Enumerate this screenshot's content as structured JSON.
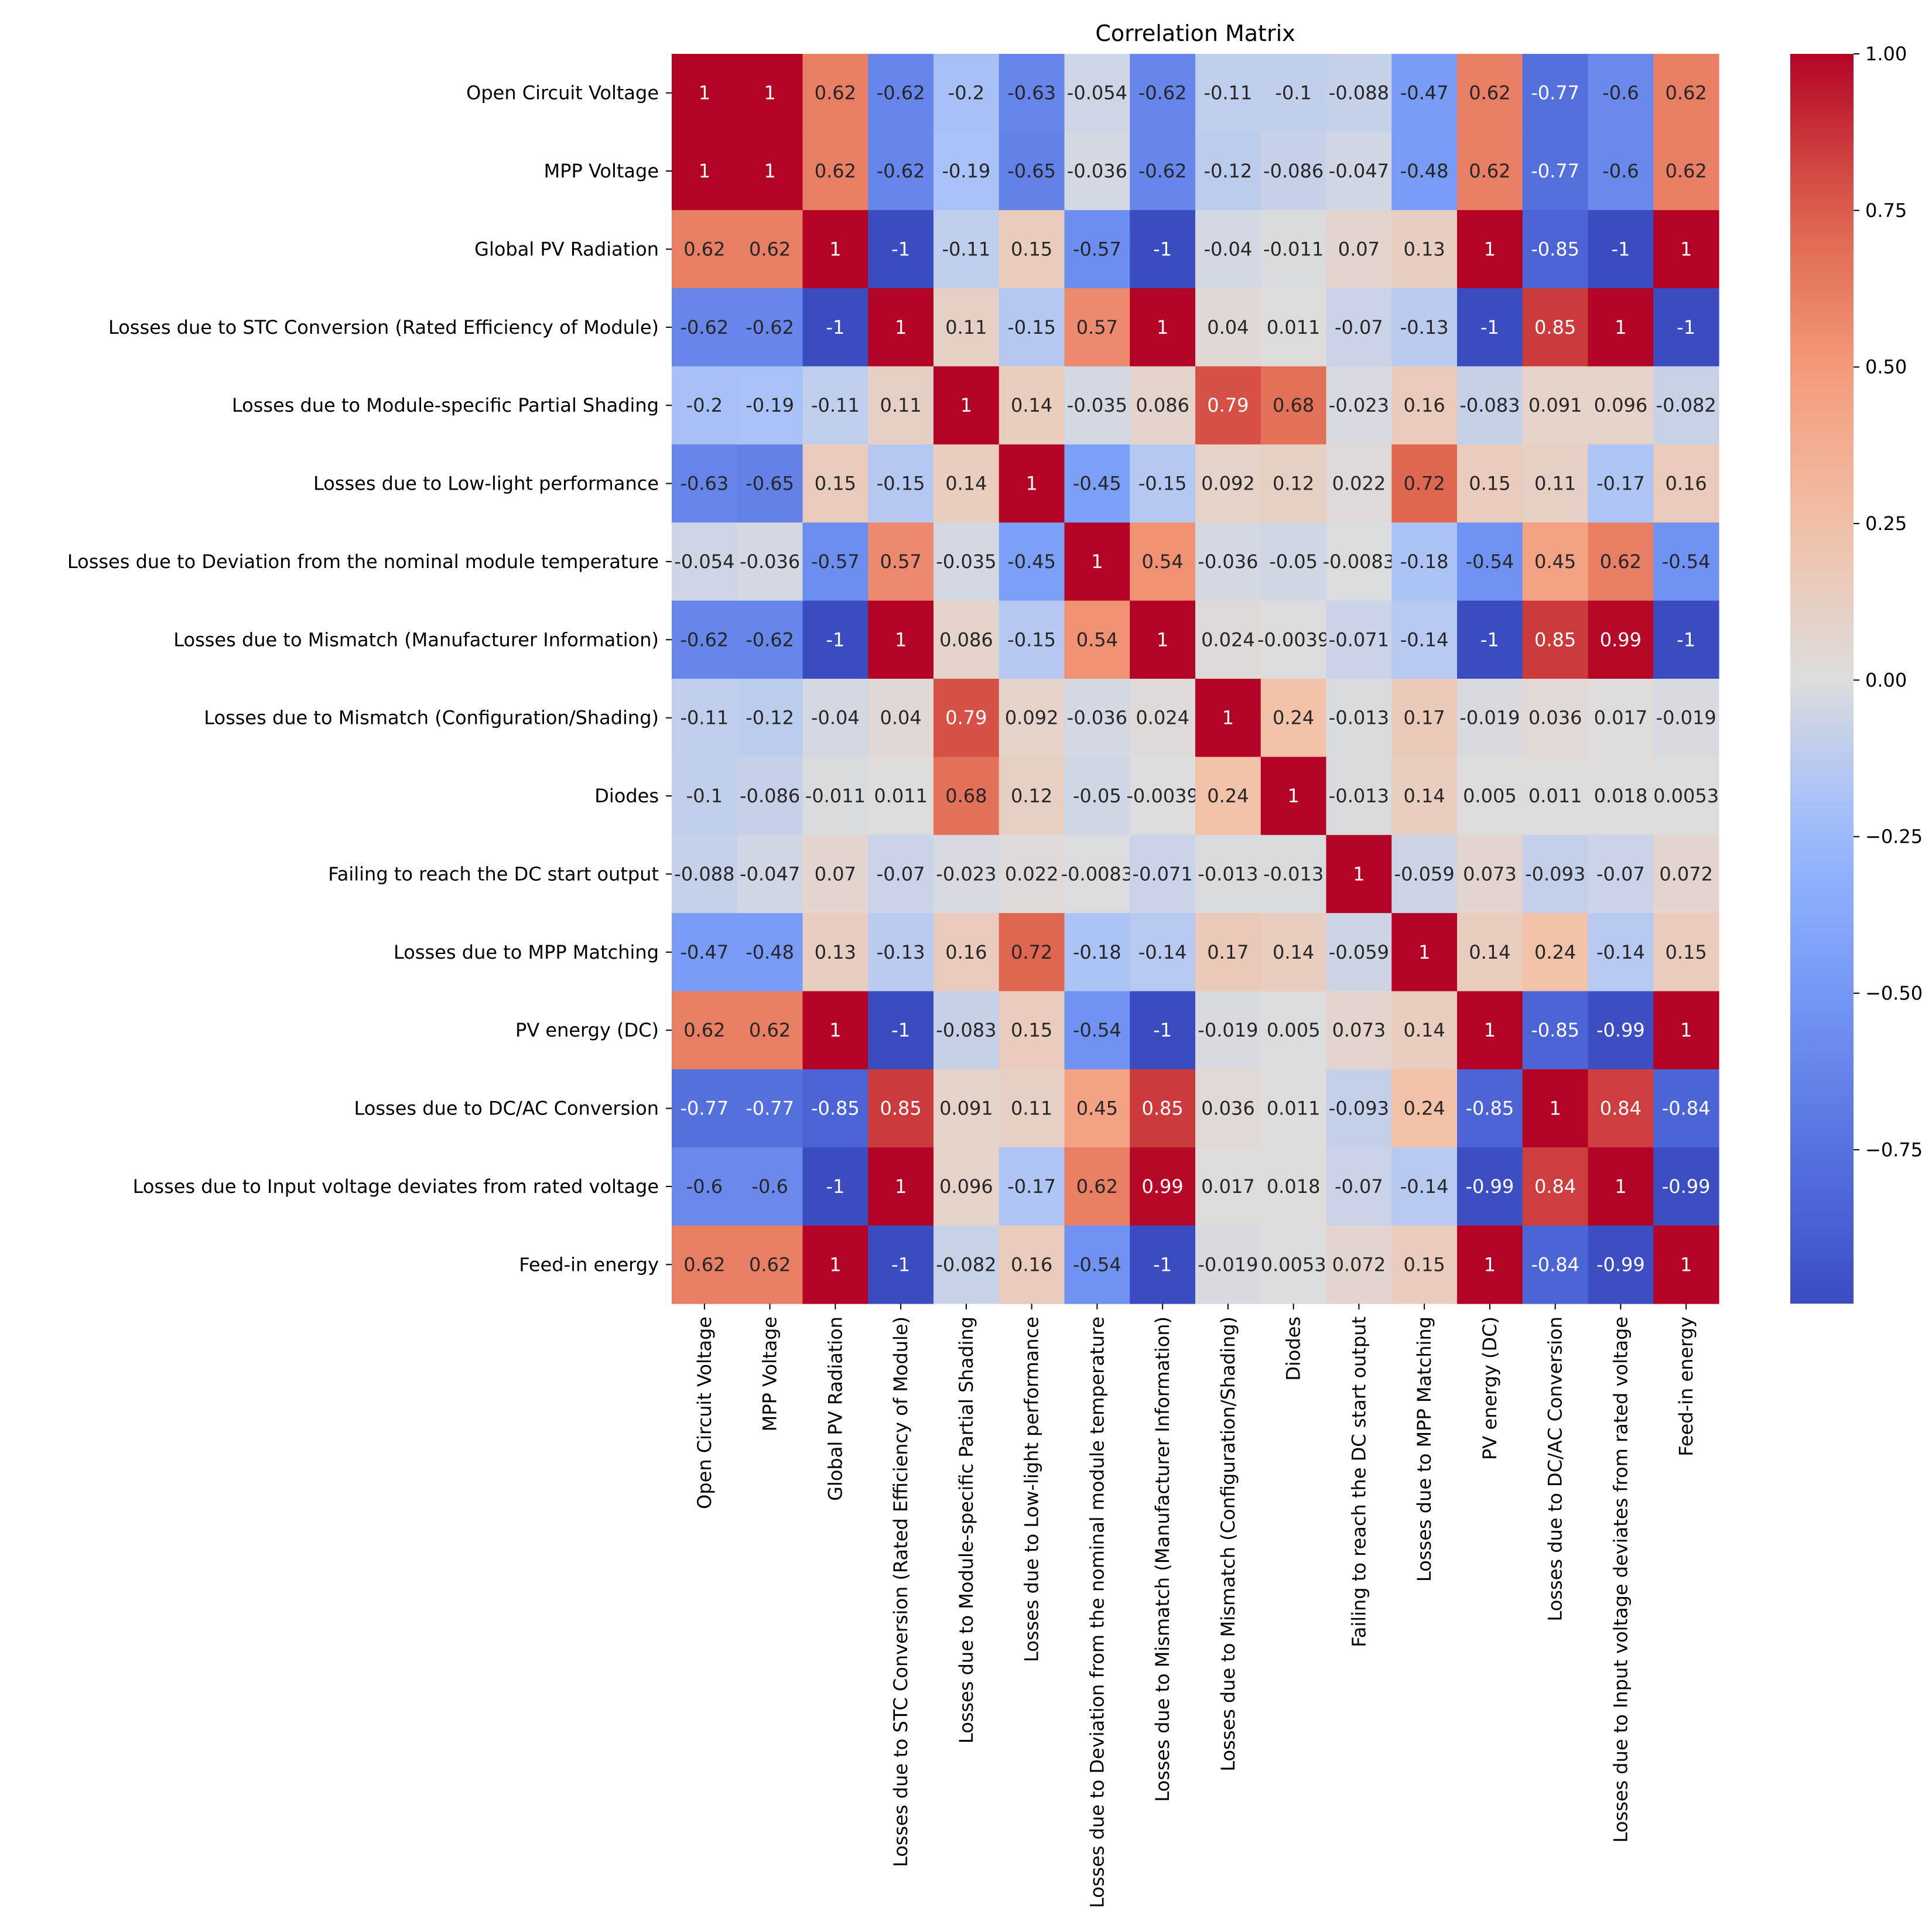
{
  "chart_data": {
    "type": "heatmap",
    "title": "Correlation Matrix",
    "colormap": "coolwarm",
    "vmin": -1,
    "vmax": 1,
    "colorbar_ticks": [
      "1.00",
      "0.75",
      "0.50",
      "0.25",
      "0.00",
      "−0.25",
      "−0.50",
      "−0.75"
    ],
    "colorbar_tick_values": [
      1.0,
      0.75,
      0.5,
      0.25,
      0.0,
      -0.25,
      -0.5,
      -0.75
    ],
    "labels": [
      "Open Circuit Voltage",
      "MPP Voltage",
      "Global PV Radiation",
      "Losses due to STC Conversion (Rated Efficiency of Module)",
      "Losses due to Module-specific Partial Shading",
      "Losses due to Low-light performance",
      "Losses due to Deviation from the nominal module temperature",
      "Losses due to Mismatch (Manufacturer Information)",
      "Losses due to Mismatch (Configuration/Shading)",
      "Diodes",
      "Failing to reach the DC start output",
      "Losses due to MPP Matching",
      "PV energy (DC)",
      "Losses due to DC/AC Conversion",
      "Losses due to Input voltage deviates from rated voltage",
      "Feed-in energy"
    ],
    "values": [
      [
        1,
        1,
        0.62,
        -0.62,
        -0.2,
        -0.63,
        -0.054,
        -0.62,
        -0.11,
        -0.1,
        -0.088,
        -0.47,
        0.62,
        -0.77,
        -0.6,
        0.62
      ],
      [
        1,
        1,
        0.62,
        -0.62,
        -0.19,
        -0.65,
        -0.036,
        -0.62,
        -0.12,
        -0.086,
        -0.047,
        -0.48,
        0.62,
        -0.77,
        -0.6,
        0.62
      ],
      [
        0.62,
        0.62,
        1,
        -1,
        -0.11,
        0.15,
        -0.57,
        -1,
        -0.04,
        -0.011,
        0.07,
        0.13,
        1,
        -0.85,
        -1,
        1
      ],
      [
        -0.62,
        -0.62,
        -1,
        1,
        0.11,
        -0.15,
        0.57,
        1,
        0.04,
        0.011,
        -0.07,
        -0.13,
        -1,
        0.85,
        1,
        -1
      ],
      [
        -0.2,
        -0.19,
        -0.11,
        0.11,
        1,
        0.14,
        -0.035,
        0.086,
        0.79,
        0.68,
        -0.023,
        0.16,
        -0.083,
        0.091,
        0.096,
        -0.082
      ],
      [
        -0.63,
        -0.65,
        0.15,
        -0.15,
        0.14,
        1,
        -0.45,
        -0.15,
        0.092,
        0.12,
        0.022,
        0.72,
        0.15,
        0.11,
        -0.17,
        0.16
      ],
      [
        -0.054,
        -0.036,
        -0.57,
        0.57,
        -0.035,
        -0.45,
        1,
        0.54,
        -0.036,
        -0.05,
        -0.0083,
        -0.18,
        -0.54,
        0.45,
        0.62,
        -0.54
      ],
      [
        -0.62,
        -0.62,
        -1,
        1,
        0.086,
        -0.15,
        0.54,
        1,
        0.024,
        -0.0039,
        -0.071,
        -0.14,
        -1,
        0.85,
        0.99,
        -1
      ],
      [
        -0.11,
        -0.12,
        -0.04,
        0.04,
        0.79,
        0.092,
        -0.036,
        0.024,
        1,
        0.24,
        -0.013,
        0.17,
        -0.019,
        0.036,
        0.017,
        -0.019
      ],
      [
        -0.1,
        -0.086,
        -0.011,
        0.011,
        0.68,
        0.12,
        -0.05,
        -0.0039,
        0.24,
        1,
        -0.013,
        0.14,
        0.005,
        0.011,
        0.018,
        0.0053
      ],
      [
        -0.088,
        -0.047,
        0.07,
        -0.07,
        -0.023,
        0.022,
        -0.0083,
        -0.071,
        -0.013,
        -0.013,
        1,
        -0.059,
        0.073,
        -0.093,
        -0.07,
        0.072
      ],
      [
        -0.47,
        -0.48,
        0.13,
        -0.13,
        0.16,
        0.72,
        -0.18,
        -0.14,
        0.17,
        0.14,
        -0.059,
        1,
        0.14,
        0.24,
        -0.14,
        0.15
      ],
      [
        0.62,
        0.62,
        1,
        -1,
        -0.083,
        0.15,
        -0.54,
        -1,
        -0.019,
        0.005,
        0.073,
        0.14,
        1,
        -0.85,
        -0.99,
        1
      ],
      [
        -0.77,
        -0.77,
        -0.85,
        0.85,
        0.091,
        0.11,
        0.45,
        0.85,
        0.036,
        0.011,
        -0.093,
        0.24,
        -0.85,
        1,
        0.84,
        -0.84
      ],
      [
        -0.6,
        -0.6,
        -1,
        1,
        0.096,
        -0.17,
        0.62,
        0.99,
        0.017,
        0.018,
        -0.07,
        -0.14,
        -0.99,
        0.84,
        1,
        -0.99
      ],
      [
        0.62,
        0.62,
        1,
        -1,
        -0.082,
        0.16,
        -0.54,
        -1,
        -0.019,
        0.0053,
        0.072,
        0.15,
        1,
        -0.84,
        -0.99,
        1
      ]
    ],
    "cell_text": [
      [
        "1",
        "1",
        "0.62",
        "-0.62",
        "-0.2",
        "-0.63",
        "-0.054",
        "-0.62",
        "-0.11",
        "-0.1",
        "-0.088",
        "-0.47",
        "0.62",
        "-0.77",
        "-0.6",
        "0.62"
      ],
      [
        "1",
        "1",
        "0.62",
        "-0.62",
        "-0.19",
        "-0.65",
        "-0.036",
        "-0.62",
        "-0.12",
        "-0.086",
        "-0.047",
        "-0.48",
        "0.62",
        "-0.77",
        "-0.6",
        "0.62"
      ],
      [
        "0.62",
        "0.62",
        "1",
        "-1",
        "-0.11",
        "0.15",
        "-0.57",
        "-1",
        "-0.04",
        "-0.011",
        "0.07",
        "0.13",
        "1",
        "-0.85",
        "-1",
        "1"
      ],
      [
        "-0.62",
        "-0.62",
        "-1",
        "1",
        "0.11",
        "-0.15",
        "0.57",
        "1",
        "0.04",
        "0.011",
        "-0.07",
        "-0.13",
        "-1",
        "0.85",
        "1",
        "-1"
      ],
      [
        "-0.2",
        "-0.19",
        "-0.11",
        "0.11",
        "1",
        "0.14",
        "-0.035",
        "0.086",
        "0.79",
        "0.68",
        "-0.023",
        "0.16",
        "-0.083",
        "0.091",
        "0.096",
        "-0.082"
      ],
      [
        "-0.63",
        "-0.65",
        "0.15",
        "-0.15",
        "0.14",
        "1",
        "-0.45",
        "-0.15",
        "0.092",
        "0.12",
        "0.022",
        "0.72",
        "0.15",
        "0.11",
        "-0.17",
        "0.16"
      ],
      [
        "-0.054",
        "-0.036",
        "-0.57",
        "0.57",
        "-0.035",
        "-0.45",
        "1",
        "0.54",
        "-0.036",
        "-0.05",
        "-0.0083",
        "-0.18",
        "-0.54",
        "0.45",
        "0.62",
        "-0.54"
      ],
      [
        "-0.62",
        "-0.62",
        "-1",
        "1",
        "0.086",
        "-0.15",
        "0.54",
        "1",
        "0.024",
        "-0.0039",
        "-0.071",
        "-0.14",
        "-1",
        "0.85",
        "0.99",
        "-1"
      ],
      [
        "-0.11",
        "-0.12",
        "-0.04",
        "0.04",
        "0.79",
        "0.092",
        "-0.036",
        "0.024",
        "1",
        "0.24",
        "-0.013",
        "0.17",
        "-0.019",
        "0.036",
        "0.017",
        "-0.019"
      ],
      [
        "-0.1",
        "-0.086",
        "-0.011",
        "0.011",
        "0.68",
        "0.12",
        "-0.05",
        "-0.0039",
        "0.24",
        "1",
        "-0.013",
        "0.14",
        "0.005",
        "0.011",
        "0.018",
        "0.0053"
      ],
      [
        "-0.088",
        "-0.047",
        "0.07",
        "-0.07",
        "-0.023",
        "0.022",
        "-0.0083",
        "-0.071",
        "-0.013",
        "-0.013",
        "1",
        "-0.059",
        "0.073",
        "-0.093",
        "-0.07",
        "0.072"
      ],
      [
        "-0.47",
        "-0.48",
        "0.13",
        "-0.13",
        "0.16",
        "0.72",
        "-0.18",
        "-0.14",
        "0.17",
        "0.14",
        "-0.059",
        "1",
        "0.14",
        "0.24",
        "-0.14",
        "0.15"
      ],
      [
        "0.62",
        "0.62",
        "1",
        "-1",
        "-0.083",
        "0.15",
        "-0.54",
        "-1",
        "-0.019",
        "0.005",
        "0.073",
        "0.14",
        "1",
        "-0.85",
        "-0.99",
        "1"
      ],
      [
        "-0.77",
        "-0.77",
        "-0.85",
        "0.85",
        "0.091",
        "0.11",
        "0.45",
        "0.85",
        "0.036",
        "0.011",
        "-0.093",
        "0.24",
        "-0.85",
        "1",
        "0.84",
        "-0.84"
      ],
      [
        "-0.6",
        "-0.6",
        "-1",
        "1",
        "0.096",
        "-0.17",
        "0.62",
        "0.99",
        "0.017",
        "0.018",
        "-0.07",
        "-0.14",
        "-0.99",
        "0.84",
        "1",
        "-0.99"
      ],
      [
        "0.62",
        "0.62",
        "1",
        "-1",
        "-0.082",
        "0.16",
        "-0.54",
        "-1",
        "-0.019",
        "0.0053",
        "0.072",
        "0.15",
        "1",
        "-0.84",
        "-0.99",
        "1"
      ]
    ]
  }
}
